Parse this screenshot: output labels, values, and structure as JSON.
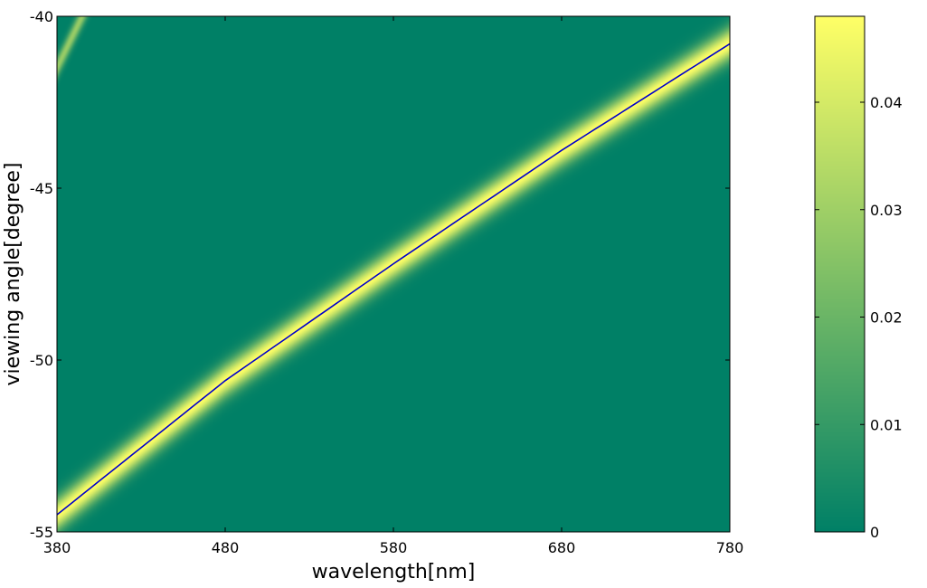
{
  "chart_data": {
    "type": "heatmap",
    "title": "",
    "xlabel": "wavelength[nm]",
    "ylabel": "viewing angle[degree]",
    "xlim": [
      380,
      780
    ],
    "ylim": [
      -55,
      -40
    ],
    "xticks": [
      380,
      480,
      580,
      680,
      780
    ],
    "xtick_labels": [
      "380",
      "480",
      "580",
      "680",
      "780"
    ],
    "yticks": [
      -40,
      -45,
      -50,
      -55
    ],
    "ytick_labels": [
      "-40",
      "-45",
      "-50",
      "-55"
    ],
    "grid": false,
    "colormap": "summer",
    "colors": {
      "low": "#008066",
      "high": "#ffff66",
      "line": "#0000cc"
    },
    "colorbar": {
      "clim": [
        0,
        0.048
      ],
      "ticks": [
        0,
        0.01,
        0.02,
        0.03,
        0.04
      ],
      "tick_labels": [
        "0",
        "0.01",
        "0.02",
        "0.03",
        "0.04"
      ]
    },
    "ridge_line": {
      "name": "",
      "x": [
        380,
        480,
        580,
        680,
        780
      ],
      "y": [
        -54.5,
        -50.6,
        -47.2,
        -43.9,
        -40.8
      ]
    },
    "secondary_ridge": {
      "x": [
        380,
        395
      ],
      "y": [
        -41.5,
        -40.0
      ]
    },
    "peak_value": 0.048
  }
}
